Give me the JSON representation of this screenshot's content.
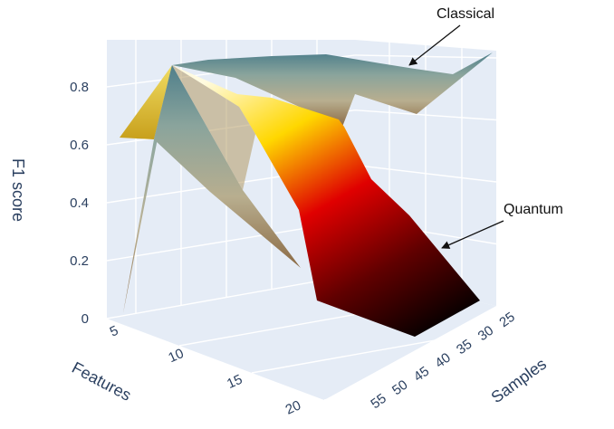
{
  "chart_data": {
    "type": "surface",
    "zlabel": "F1 score",
    "xlabel": "Features",
    "ylabel": "Samples",
    "z_ticks": [
      "0",
      "0.2",
      "0.4",
      "0.6",
      "0.8"
    ],
    "x_ticks": [
      "5",
      "10",
      "15",
      "20"
    ],
    "y_ticks": [
      "25",
      "30",
      "35",
      "40",
      "45",
      "50",
      "55"
    ],
    "zlim": [
      0,
      0.92
    ],
    "series": [
      {
        "name": "Classical",
        "colorscale": [
          "#8b6a44",
          "#b8ae8f",
          "#8aa49c",
          "#4f7f8b"
        ],
        "annotation_values": [
          0.62,
          0.88,
          0.9,
          0.9,
          0.86,
          0.72,
          0.86
        ]
      },
      {
        "name": "Quantum",
        "colorscale": [
          "#000000",
          "#e00000",
          "#ffd700",
          "#fffbe0"
        ],
        "annotation_values": [
          0.88,
          0.76,
          0.5,
          0.38,
          0.18,
          0.05
        ]
      }
    ],
    "annotations": [
      {
        "text": "Classical",
        "series": "Classical"
      },
      {
        "text": "Quantum",
        "series": "Quantum"
      }
    ],
    "background_color": "#e5ecf6",
    "grid_color": "#ffffff"
  }
}
